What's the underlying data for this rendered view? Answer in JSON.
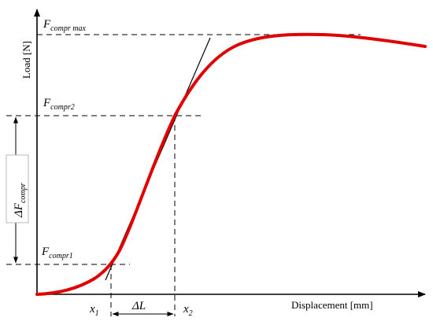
{
  "axes": {
    "y_label": "Load [N]",
    "x_label": "Displacement [mm]"
  },
  "labels": {
    "f_max": {
      "main": "F",
      "sub": "compr max"
    },
    "f2": {
      "main": "F",
      "sub": "compr2"
    },
    "delta_f": {
      "main": "ΔF",
      "sub": "compr"
    },
    "f1": {
      "main": "F",
      "sub": "compr1"
    },
    "x1": {
      "main": "x",
      "sub": "1"
    },
    "x2": {
      "main": "x",
      "sub": "2"
    },
    "delta_l": "ΔL"
  },
  "colors": {
    "curve": "#e10000",
    "lines": "#000000",
    "box_border": "#b8b8b8"
  }
}
